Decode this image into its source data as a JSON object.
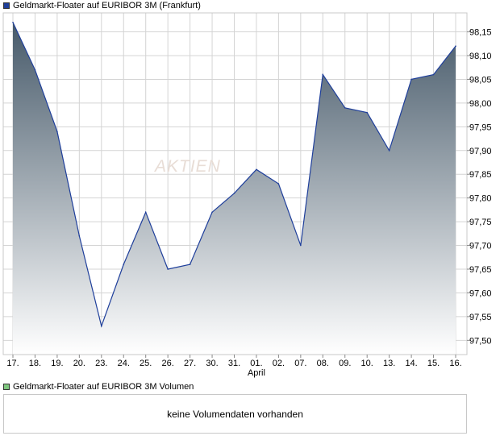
{
  "price_legend": {
    "label": "Geldmarkt-Floater auf EURIBOR 3M (Frankfurt)",
    "color": "#1f3f9b"
  },
  "volume_legend": {
    "label": "Geldmarkt-Floater auf EURIBOR 3M Volumen",
    "color": "#7fc77f"
  },
  "volume_panel": {
    "message": "keine Volumendaten vorhanden"
  },
  "watermark": {
    "text": "AKTIEN"
  },
  "chart_data": {
    "type": "area",
    "categories": [
      "17.",
      "18.",
      "19.",
      "20.",
      "23.",
      "24.",
      "25.",
      "26.",
      "27.",
      "30.",
      "31.",
      "01.",
      "02.",
      "07.",
      "08.",
      "09.",
      "10.",
      "13.",
      "14.",
      "15.",
      "16."
    ],
    "month_label": {
      "index": 11,
      "text": "April"
    },
    "series": [
      {
        "values": [
          98.17,
          98.07,
          97.94,
          97.72,
          97.53,
          97.66,
          97.77,
          97.65,
          97.66,
          97.77,
          97.81,
          97.86,
          97.83,
          97.7,
          98.06,
          97.99,
          97.98,
          97.9,
          98.05,
          98.06,
          98.12
        ]
      }
    ],
    "y_ticks": [
      "97,50",
      "97,55",
      "97,60",
      "97,65",
      "97,70",
      "97,75",
      "97,80",
      "97,85",
      "97,90",
      "97,95",
      "98,00",
      "98,05",
      "98,10",
      "98,15"
    ],
    "ylim": [
      97.47,
      98.19
    ],
    "grid": true,
    "colors": {
      "line": "#1f3f9b",
      "fill_top": "#475a6a",
      "fill_bottom": "#ffffff",
      "grid": "#d4d4d4"
    }
  }
}
